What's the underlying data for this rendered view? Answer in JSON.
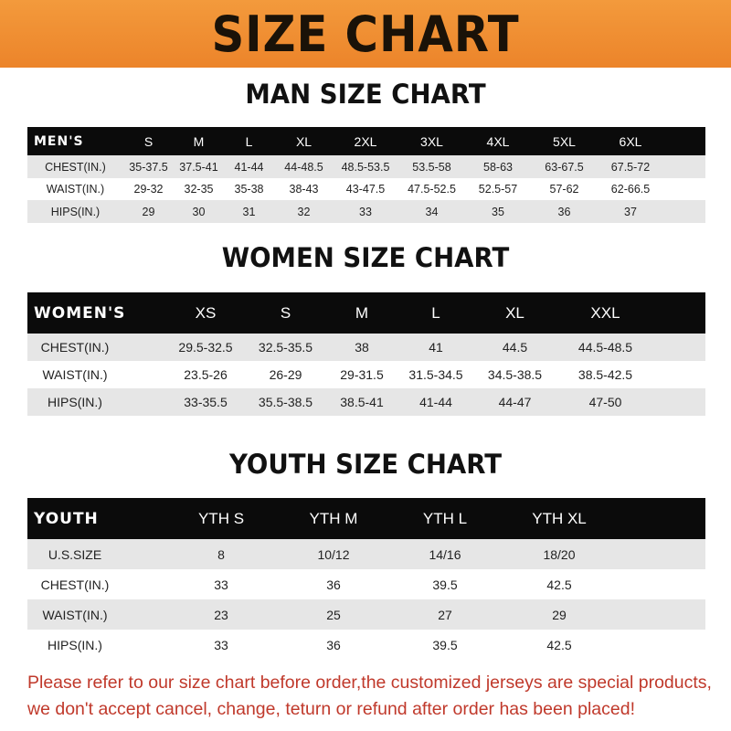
{
  "banner_title": "SIZE CHART",
  "colors": {
    "banner": "#ef8c2e",
    "header_row": "#0b0b0b",
    "stripe": "#e6e6e6",
    "notice": "#c0392b"
  },
  "men": {
    "title": "MAN SIZE CHART",
    "header": [
      "MEN'S",
      "S",
      "M",
      "L",
      "XL",
      "2XL",
      "3XL",
      "4XL",
      "5XL",
      "6XL"
    ],
    "rows": [
      [
        "CHEST(IN.)",
        "35-37.5",
        "37.5-41",
        "41-44",
        "44-48.5",
        "48.5-53.5",
        "53.5-58",
        "58-63",
        "63-67.5",
        "67.5-72"
      ],
      [
        "WAIST(IN.)",
        "29-32",
        "32-35",
        "35-38",
        "38-43",
        "43-47.5",
        "47.5-52.5",
        "52.5-57",
        "57-62",
        "62-66.5"
      ],
      [
        "HIPS(IN.)",
        "29",
        "30",
        "31",
        "32",
        "33",
        "34",
        "35",
        "36",
        "37"
      ]
    ]
  },
  "women": {
    "title": "WOMEN SIZE CHART",
    "header": [
      "WOMEN'S",
      "XS",
      "S",
      "M",
      "L",
      "XL",
      "XXL"
    ],
    "rows": [
      [
        "CHEST(IN.)",
        "29.5-32.5",
        "32.5-35.5",
        "38",
        "41",
        "44.5",
        "44.5-48.5"
      ],
      [
        "WAIST(IN.)",
        "23.5-26",
        "26-29",
        "29-31.5",
        "31.5-34.5",
        "34.5-38.5",
        "38.5-42.5"
      ],
      [
        "HIPS(IN.)",
        "33-35.5",
        "35.5-38.5",
        "38.5-41",
        "41-44",
        "44-47",
        "47-50"
      ]
    ]
  },
  "youth": {
    "title": "YOUTH SIZE CHART",
    "header": [
      "YOUTH",
      "YTH S",
      "YTH M",
      "YTH L",
      "YTH XL"
    ],
    "rows": [
      [
        "U.S.SIZE",
        "8",
        "10/12",
        "14/16",
        "18/20"
      ],
      [
        "CHEST(IN.)",
        "33",
        "36",
        "39.5",
        "42.5"
      ],
      [
        "WAIST(IN.)",
        "23",
        "25",
        "27",
        "29"
      ],
      [
        "HIPS(IN.)",
        "33",
        "36",
        "39.5",
        "42.5"
      ]
    ]
  },
  "notice": {
    "line1": "Please refer to our size chart before order,the customized jerseys are special products,",
    "line2": "we don't accept cancel, change, teturn or refund after order has been placed!"
  }
}
